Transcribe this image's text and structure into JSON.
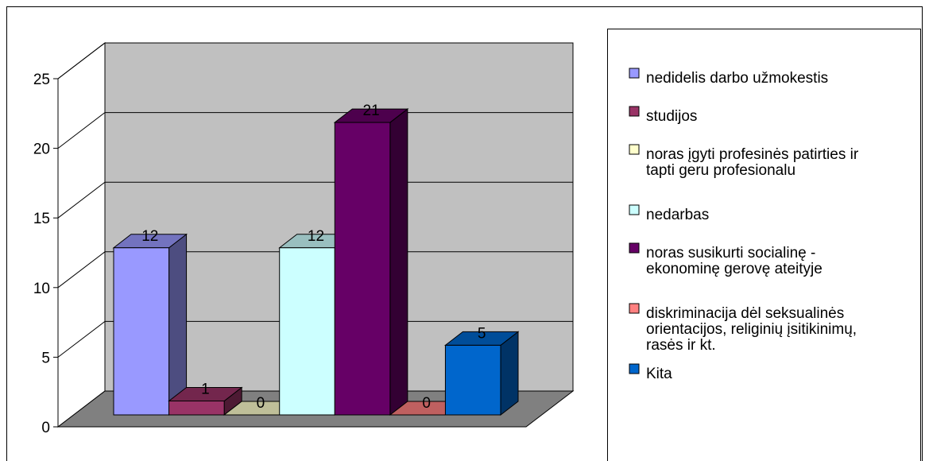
{
  "chart_data": {
    "type": "bar",
    "style": "3d-column",
    "categories": [
      "nedidelis darbo užmokestis",
      "studijos",
      "noras įgyti profesinės  patirties ir tapti geru profesionalu",
      "nedarbas",
      "noras susikurti socialinę - ekonominę gerovę ateityje",
      "diskriminacija dėl seksualinės orientacijos, religinių įsitikinimų, rasės ir kt.",
      "Kita"
    ],
    "values": [
      12,
      1,
      0,
      12,
      21,
      0,
      5
    ],
    "colors": [
      "#9999ff",
      "#993366",
      "#ffffcc",
      "#ccffff",
      "#660066",
      "#ff8080",
      "#0066cc"
    ],
    "ylim": [
      0,
      25
    ],
    "yticks": [
      0,
      5,
      10,
      15,
      20,
      25
    ],
    "grid": true,
    "legend_position": "right",
    "title": "",
    "xlabel": "",
    "ylabel": ""
  },
  "legend": {
    "items": [
      {
        "lines": [
          "nedidelis darbo užmokestis"
        ]
      },
      {
        "lines": [
          "studijos"
        ]
      },
      {
        "lines": [
          "noras įgyti profesinės  patirties ir",
          "tapti geru profesionalu"
        ]
      },
      {
        "lines": [
          "nedarbas"
        ]
      },
      {
        "lines": [
          "noras susikurti socialinę -",
          "ekonominę gerovę ateityje"
        ]
      },
      {
        "lines": [
          "diskriminacija dėl seksualinės",
          "orientacijos, religinių įsitikinimų,",
          "rasės ir kt."
        ]
      },
      {
        "lines": [
          "Kita"
        ]
      }
    ]
  }
}
